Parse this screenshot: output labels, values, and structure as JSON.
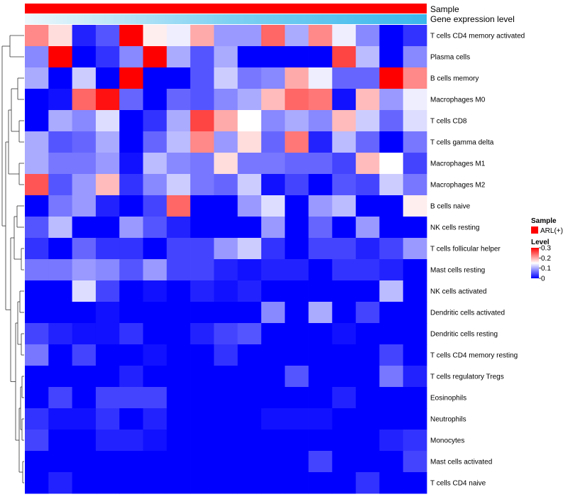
{
  "chart_data": {
    "type": "heatmap",
    "annotation_tracks": [
      {
        "name": "Sample",
        "color": "#ff0000"
      },
      {
        "name": "Gene expression level",
        "gradient": [
          "#eef8fc",
          "#7fd1f2",
          "#3ab7ec"
        ]
      }
    ],
    "rows": [
      "T cells CD4 memory activated",
      "Plasma cells",
      "B cells memory",
      "Macrophages M0",
      "T cells CD8",
      "T cells gamma delta",
      "Macrophages M1",
      "Macrophages M2",
      "B cells naive",
      "NK cells resting",
      "T cells follicular helper",
      "Mast cells resting",
      "NK cells activated",
      "Dendritic cells activated",
      "Dendritic cells resting",
      "T cells CD4 memory resting",
      "T cells regulatory  Tregs",
      "Eosinophils",
      "Neutrophils",
      "Monocytes",
      "Mast cells activated",
      "T cells CD4 naive"
    ],
    "columns": 17,
    "values": [
      [
        0.22,
        0.17,
        0.02,
        0.05,
        0.3,
        0.16,
        0.14,
        0.2,
        0.09,
        0.09,
        0.24,
        0.1,
        0.22,
        0.14,
        0.08,
        0.0,
        0.03
      ],
      [
        0.08,
        0.3,
        0.0,
        0.03,
        0.08,
        0.3,
        0.1,
        0.05,
        0.1,
        0.0,
        0.0,
        0.0,
        0.0,
        0.26,
        0.11,
        0.0,
        0.08
      ],
      [
        0.1,
        0.0,
        0.12,
        0.0,
        0.3,
        0.0,
        0.0,
        0.05,
        0.12,
        0.07,
        0.08,
        0.2,
        0.14,
        0.06,
        0.06,
        0.3,
        0.22
      ],
      [
        0.0,
        0.01,
        0.24,
        0.29,
        0.06,
        0.0,
        0.06,
        0.05,
        0.08,
        0.1,
        0.19,
        0.24,
        0.23,
        0.01,
        0.19,
        0.09,
        0.14
      ],
      [
        0.0,
        0.1,
        0.08,
        0.13,
        0.0,
        0.03,
        0.1,
        0.26,
        0.2,
        0.15,
        0.08,
        0.1,
        0.08,
        0.19,
        0.12,
        0.06,
        0.13
      ],
      [
        0.1,
        0.05,
        0.06,
        0.1,
        0.0,
        0.06,
        0.11,
        0.22,
        0.09,
        0.17,
        0.06,
        0.23,
        0.02,
        0.11,
        0.06,
        0.0,
        0.07
      ],
      [
        0.1,
        0.07,
        0.07,
        0.09,
        0.01,
        0.11,
        0.08,
        0.07,
        0.17,
        0.07,
        0.07,
        0.06,
        0.06,
        0.04,
        0.19,
        0.15,
        0.04
      ],
      [
        0.25,
        0.05,
        0.09,
        0.19,
        0.03,
        0.08,
        0.12,
        0.07,
        0.06,
        0.12,
        0.01,
        0.04,
        0.0,
        0.05,
        0.04,
        0.12,
        0.07
      ],
      [
        0.0,
        0.07,
        0.09,
        0.02,
        0.0,
        0.04,
        0.24,
        0.0,
        0.0,
        0.09,
        0.13,
        0.0,
        0.09,
        0.11,
        0.0,
        0.0,
        0.16
      ],
      [
        0.05,
        0.11,
        0.0,
        0.0,
        0.09,
        0.05,
        0.02,
        0.0,
        0.0,
        0.0,
        0.09,
        0.0,
        0.06,
        0.0,
        0.09,
        0.0,
        0.0
      ],
      [
        0.03,
        0.0,
        0.06,
        0.03,
        0.03,
        0.0,
        0.04,
        0.04,
        0.09,
        0.12,
        0.03,
        0.0,
        0.04,
        0.04,
        0.02,
        0.04,
        0.09
      ],
      [
        0.07,
        0.07,
        0.09,
        0.08,
        0.05,
        0.09,
        0.04,
        0.04,
        0.02,
        0.01,
        0.02,
        0.02,
        0.0,
        0.03,
        0.03,
        0.02,
        0.0
      ],
      [
        0.0,
        0.0,
        0.13,
        0.04,
        0.0,
        0.01,
        0.0,
        0.02,
        0.01,
        0.02,
        0.0,
        0.0,
        0.0,
        0.0,
        0.0,
        0.11,
        0.0
      ],
      [
        0.0,
        0.0,
        0.0,
        0.01,
        0.0,
        0.0,
        0.0,
        0.0,
        0.0,
        0.0,
        0.08,
        0.0,
        0.1,
        0.0,
        0.04,
        0.0,
        0.0
      ],
      [
        0.04,
        0.02,
        0.01,
        0.01,
        0.03,
        0.0,
        0.0,
        0.02,
        0.04,
        0.05,
        0.0,
        0.0,
        0.0,
        0.01,
        0.0,
        0.0,
        0.0
      ],
      [
        0.07,
        0.0,
        0.04,
        0.0,
        0.0,
        0.01,
        0.0,
        0.0,
        0.03,
        0.0,
        0.0,
        0.0,
        0.0,
        0.0,
        0.0,
        0.04,
        0.0
      ],
      [
        0.0,
        0.0,
        0.0,
        0.0,
        0.02,
        0.0,
        0.0,
        0.0,
        0.0,
        0.0,
        0.0,
        0.05,
        0.0,
        0.0,
        0.0,
        0.07,
        0.02
      ],
      [
        0.0,
        0.04,
        0.0,
        0.04,
        0.04,
        0.04,
        0.0,
        0.0,
        0.0,
        0.0,
        0.0,
        0.0,
        0.0,
        0.02,
        0.0,
        0.0,
        0.0
      ],
      [
        0.03,
        0.01,
        0.01,
        0.03,
        0.0,
        0.02,
        0.0,
        0.0,
        0.0,
        0.0,
        0.01,
        0.01,
        0.01,
        0.0,
        0.0,
        0.0,
        0.0
      ],
      [
        0.04,
        0.0,
        0.0,
        0.02,
        0.02,
        0.01,
        0.0,
        0.0,
        0.0,
        0.0,
        0.0,
        0.0,
        0.0,
        0.0,
        0.0,
        0.02,
        0.03
      ],
      [
        0.0,
        0.0,
        0.0,
        0.0,
        0.0,
        0.0,
        0.0,
        0.0,
        0.0,
        0.0,
        0.0,
        0.0,
        0.04,
        0.0,
        0.0,
        0.0,
        0.04
      ],
      [
        0.0,
        0.02,
        0.0,
        0.0,
        0.0,
        0.0,
        0.0,
        0.0,
        0.0,
        0.0,
        0.0,
        0.0,
        0.0,
        0.0,
        0.03,
        0.0,
        0.0
      ]
    ],
    "color_scale": {
      "low": "#0000ff",
      "mid": "#ffffff",
      "high": "#ff0000",
      "range": [
        0,
        0.3
      ],
      "midpoint": 0.15
    },
    "legend": {
      "sample_title": "Sample",
      "sample_label": "ARL(+)",
      "sample_color": "#ff0000",
      "level_title": "Level",
      "level_ticks": [
        "0.3",
        "0.2",
        "0.1",
        "0"
      ],
      "level_tick_values": [
        0.3,
        0.2,
        0.1,
        0
      ]
    },
    "row_dendrogram": true,
    "column_clustering": false
  }
}
